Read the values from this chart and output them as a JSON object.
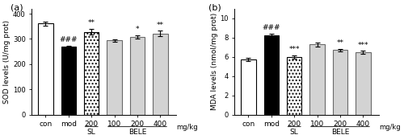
{
  "sod_values": [
    362,
    268,
    328,
    294,
    308,
    322
  ],
  "sod_errors": [
    8,
    6,
    12,
    5,
    6,
    10
  ],
  "mda_values": [
    5.75,
    8.25,
    6.0,
    7.3,
    6.7,
    6.45
  ],
  "mda_errors": [
    0.18,
    0.15,
    0.18,
    0.2,
    0.15,
    0.18
  ],
  "categories": [
    "con",
    "mod",
    "200",
    "100",
    "200",
    "400"
  ],
  "sod_ylim": [
    0,
    420
  ],
  "sod_yticks": [
    0,
    100,
    200,
    300,
    400
  ],
  "mda_ylim": [
    0,
    11
  ],
  "mda_yticks": [
    0,
    2,
    4,
    6,
    8,
    10
  ],
  "sod_ylabel": "SOD levels (U/mg prot)",
  "mda_ylabel": "MDA levels (nmol/mg prot)",
  "xlabel_mgkg": "mg/kg",
  "panel_a_label": "(a)",
  "panel_b_label": "(b)",
  "bar_colors": [
    "white",
    "black",
    "white",
    "white",
    "white",
    "white"
  ],
  "bar_hatches": [
    null,
    null,
    "..",
    "===",
    "===",
    "==="
  ],
  "bar_hatches_b": [
    null,
    null,
    "..",
    "===",
    "===",
    "==="
  ],
  "bar_edge_colors": [
    "black",
    "black",
    "black",
    "gray",
    "gray",
    "gray"
  ],
  "bar_edge_colors_b": [
    "black",
    "black",
    "black",
    "gray",
    "gray",
    "gray"
  ],
  "sod_significance": [
    "",
    "###",
    "**",
    "",
    "*",
    "**"
  ],
  "mda_significance": [
    "",
    "###",
    "***",
    "",
    "**",
    "***"
  ],
  "SL_label": "SL",
  "BELE_label": "BELE",
  "bar_width": 0.65,
  "figsize": [
    5.0,
    1.73
  ],
  "dpi": 100
}
